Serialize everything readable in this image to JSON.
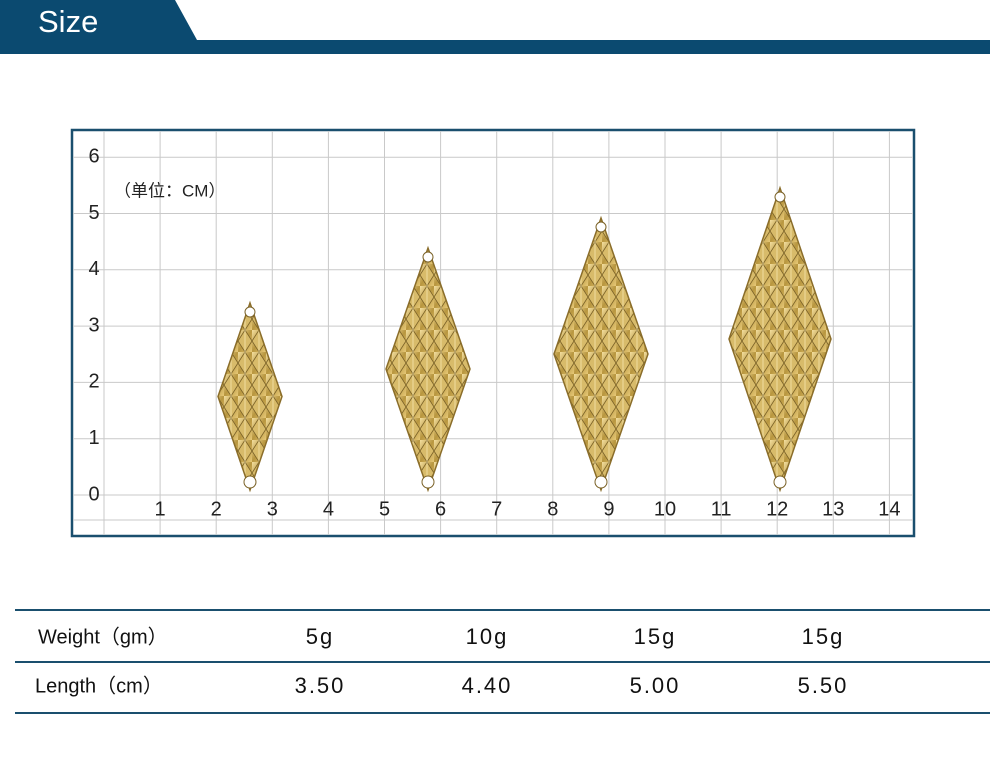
{
  "header": {
    "title": "Size"
  },
  "grid": {
    "unit": "（单位：CM）",
    "x_labels": [
      "1",
      "2",
      "3",
      "4",
      "5",
      "6",
      "7",
      "8",
      "9",
      "10",
      "11",
      "12",
      "13",
      "14"
    ],
    "y_labels": [
      "0",
      "1",
      "2",
      "3",
      "4",
      "5",
      "6"
    ]
  },
  "table": {
    "rows": [
      [
        "Weight（gm）",
        "5g",
        "10g",
        "15g",
        "15g"
      ],
      [
        "Length（cm）",
        "3.50",
        "4.40",
        "5.00",
        "5.50"
      ]
    ]
  }
}
